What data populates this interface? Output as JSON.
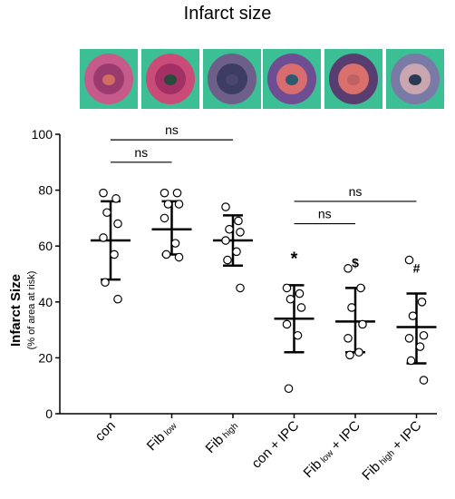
{
  "title": "Infarct size",
  "photos": [
    {
      "label": "con",
      "outer": "#c65a8a",
      "inner": "#9a3a6e",
      "core": "#d06c62"
    },
    {
      "label": "Fib low",
      "outer": "#c94c78",
      "inner": "#a23064",
      "core": "#2a4a3a"
    },
    {
      "label": "Fib high",
      "outer": "#6e5f8a",
      "inner": "#3d3c62",
      "core": "#4a4670"
    },
    {
      "label": "con + IPC",
      "outer": "#6e4d92",
      "inner": "#d86c6e",
      "core": "#2e5a70"
    },
    {
      "label": "Fib low + IPC",
      "outer": "#5a3d70",
      "inner": "#d9706c",
      "core": "#c06064"
    },
    {
      "label": "Fib high + IPC",
      "outer": "#7a7aa6",
      "inner": "#c9a6b0",
      "core": "#2a3a52"
    }
  ],
  "chart_data": {
    "type": "scatter",
    "ylabel": "Infarct Size",
    "ylabel_sub": "(% of area at risk)",
    "ylim": [
      0,
      100
    ],
    "yticks": [
      "0",
      "20",
      "40",
      "60",
      "80",
      "100"
    ],
    "groups": [
      {
        "label_main": "con",
        "label_sub": "",
        "label_tail": "",
        "mean": 62,
        "sd_low": 48,
        "sd_high": 76,
        "mark": "",
        "points": [
          79,
          77,
          72,
          68,
          63,
          57,
          47,
          41
        ]
      },
      {
        "label_main": "Fib",
        "label_sub": "low",
        "label_tail": "",
        "mean": 66,
        "sd_low": 57,
        "sd_high": 76,
        "mark": "",
        "points": [
          79,
          79,
          75,
          75,
          70,
          61,
          57,
          56
        ]
      },
      {
        "label_main": "Fib",
        "label_sub": "high",
        "label_tail": "",
        "mean": 62,
        "sd_low": 53,
        "sd_high": 71,
        "mark": "",
        "points": [
          74,
          69,
          66,
          65,
          62,
          58,
          55,
          45
        ]
      },
      {
        "label_main": "con + IPC",
        "label_sub": "",
        "label_tail": "",
        "mean": 34,
        "sd_low": 22,
        "sd_high": 46,
        "mark": "*",
        "points": [
          45,
          43,
          41,
          38,
          32,
          28,
          9
        ]
      },
      {
        "label_main": "Fib",
        "label_sub": "low",
        "label_tail": " + IPC",
        "mean": 33,
        "sd_low": 22,
        "sd_high": 45,
        "mark": "$",
        "points": [
          52,
          45,
          38,
          32,
          27,
          22,
          21
        ]
      },
      {
        "label_main": "Fib",
        "label_sub": "high",
        "label_tail": " + IPC",
        "mean": 31,
        "sd_low": 18,
        "sd_high": 43,
        "mark": "#",
        "points": [
          55,
          40,
          35,
          28,
          27,
          24,
          19,
          12
        ]
      }
    ],
    "comparisons": [
      {
        "from": 0,
        "to": 1,
        "level": 1,
        "label": "ns"
      },
      {
        "from": 0,
        "to": 2,
        "level": 2,
        "label": "ns"
      },
      {
        "from": 3,
        "to": 4,
        "level": 1,
        "label": "ns"
      },
      {
        "from": 3,
        "to": 5,
        "level": 2,
        "label": "ns"
      }
    ]
  }
}
